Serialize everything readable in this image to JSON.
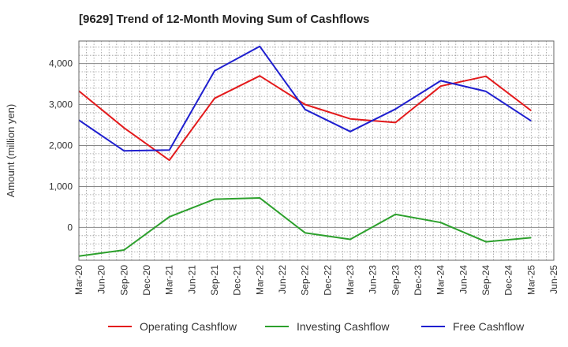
{
  "chart_data": {
    "type": "line",
    "title": "[9629]  Trend of 12-Month Moving Sum of Cashflows",
    "xlabel": "",
    "ylabel": "Amount (million yen)",
    "ylim": [
      -800,
      4550
    ],
    "yticks": [
      0,
      1000,
      2000,
      3000,
      4000
    ],
    "ytick_labels": [
      "0",
      "1,000",
      "2,000",
      "3,000",
      "4,000"
    ],
    "categories": [
      "Mar-20",
      "Jun-20",
      "Sep-20",
      "Dec-20",
      "Mar-21",
      "Jun-21",
      "Sep-21",
      "Dec-21",
      "Mar-22",
      "Jun-22",
      "Sep-22",
      "Dec-22",
      "Mar-23",
      "Jun-23",
      "Sep-23",
      "Dec-23",
      "Mar-24",
      "Jun-24",
      "Sep-24",
      "Dec-24",
      "Mar-25",
      "Jun-25"
    ],
    "grid": true,
    "legend_position": "bottom",
    "series": [
      {
        "name": "Operating Cashflow",
        "color": "#e31a1c",
        "values": [
          3330,
          null,
          2430,
          null,
          1640,
          null,
          3150,
          null,
          3700,
          null,
          3000,
          null,
          2650,
          null,
          2560,
          null,
          3450,
          null,
          3690,
          null,
          2850,
          null
        ]
      },
      {
        "name": "Investing Cashflow",
        "color": "#2ca02c",
        "values": [
          -700,
          null,
          -550,
          null,
          260,
          null,
          690,
          null,
          720,
          null,
          -130,
          null,
          -290,
          null,
          320,
          null,
          120,
          null,
          -350,
          null,
          -250,
          null
        ]
      },
      {
        "name": "Free Cashflow",
        "color": "#1f1fcf",
        "values": [
          2620,
          null,
          1870,
          null,
          1890,
          null,
          3820,
          null,
          4420,
          null,
          2880,
          null,
          2340,
          null,
          2890,
          null,
          3580,
          null,
          3320,
          null,
          2600,
          null
        ]
      }
    ]
  }
}
